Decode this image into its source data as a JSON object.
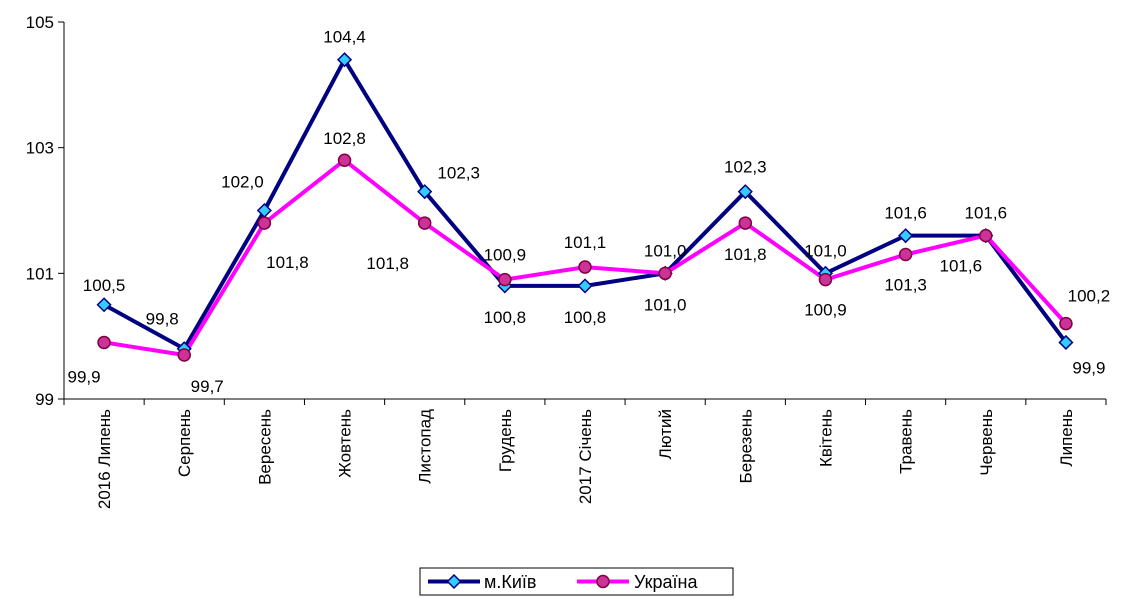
{
  "chart_data": {
    "type": "line",
    "categories": [
      "2016 Липень",
      "Серпень",
      "Вересень",
      "Жовтень",
      "Листопад",
      "Грудень",
      "2017 Січень",
      "Лютий",
      "Березень",
      "Квітень",
      "Травень",
      "Червень",
      "Липень"
    ],
    "series": [
      {
        "name": "м.Київ",
        "values": [
          100.5,
          99.8,
          102.0,
          104.4,
          102.3,
          100.8,
          100.8,
          101.0,
          102.3,
          101.0,
          101.6,
          101.6,
          99.9
        ],
        "labels": [
          "100,5",
          "99,8",
          "102,0",
          "104,4",
          "102,3",
          "100,8",
          "100,8",
          "101,0",
          "102,3",
          "101,0",
          "101,6",
          "101,6",
          "99,9"
        ],
        "color": "#000080",
        "marker": "diamond",
        "marker_color": "#33CCFF"
      },
      {
        "name": "Україна",
        "values": [
          99.9,
          99.7,
          101.8,
          102.8,
          101.8,
          100.9,
          101.1,
          101.0,
          101.8,
          100.9,
          101.3,
          101.6,
          100.2
        ],
        "labels": [
          "99,9",
          "99,7",
          "101,8",
          "102,8",
          "101,8",
          "100,9",
          "101,1",
          "101,0",
          "101,8",
          "100,9",
          "101,3",
          "101,6",
          "100,2"
        ],
        "color": "#FF00FF",
        "marker": "circle",
        "marker_color": "#CC3399"
      }
    ],
    "ylim": [
      99,
      105
    ],
    "yticks": [
      "99",
      "101",
      "103",
      "105"
    ],
    "grid": false,
    "legend_position": "bottom"
  }
}
